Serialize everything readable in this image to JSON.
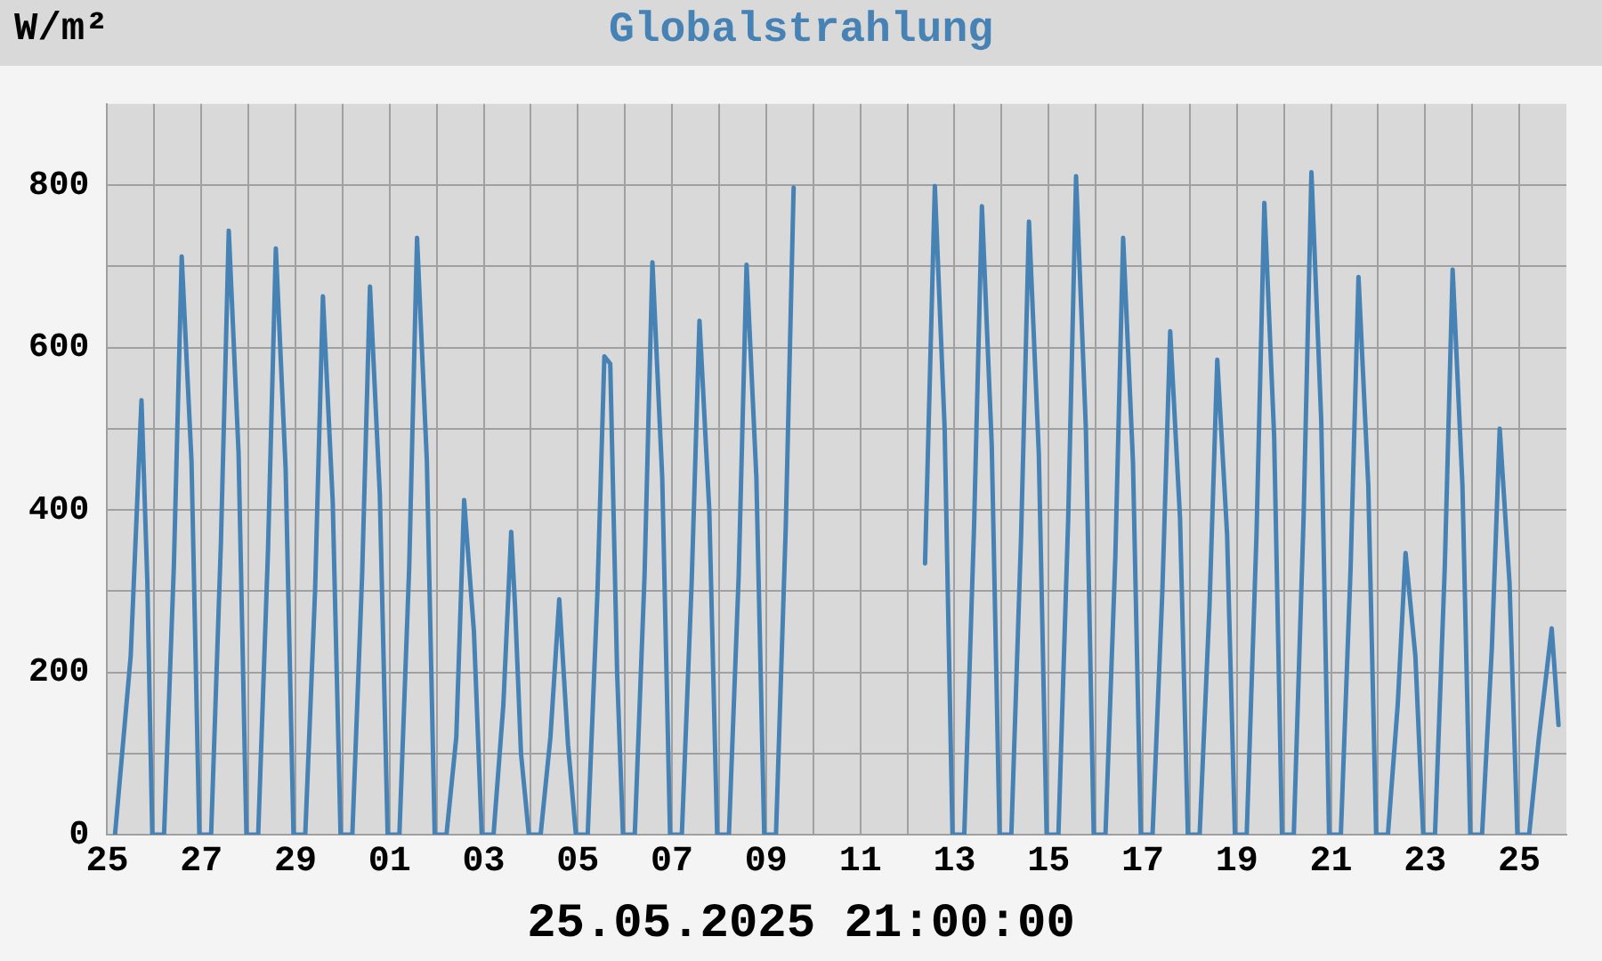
{
  "chart_data": {
    "type": "line",
    "title": "Globalstrahlung",
    "ylabel": "W/m²",
    "annotations": [
      "25.05.2025 21:00:00"
    ],
    "xlim": [
      "2025-04-25",
      "2025-05-26"
    ],
    "xticks": [
      {
        "value": "2025-04-25",
        "label": "25"
      },
      {
        "value": "2025-04-26",
        "label": null
      },
      {
        "value": "2025-04-27",
        "label": "27"
      },
      {
        "value": "2025-04-28",
        "label": null
      },
      {
        "value": "2025-04-29",
        "label": "29"
      },
      {
        "value": "2025-04-30",
        "label": null
      },
      {
        "value": "2025-05-01",
        "label": "01"
      },
      {
        "value": "2025-05-02",
        "label": null
      },
      {
        "value": "2025-05-03",
        "label": "03"
      },
      {
        "value": "2025-05-04",
        "label": null
      },
      {
        "value": "2025-05-05",
        "label": "05"
      },
      {
        "value": "2025-05-06",
        "label": null
      },
      {
        "value": "2025-05-07",
        "label": "07"
      },
      {
        "value": "2025-05-08",
        "label": null
      },
      {
        "value": "2025-05-09",
        "label": "09"
      },
      {
        "value": "2025-05-10",
        "label": null
      },
      {
        "value": "2025-05-11",
        "label": "11"
      },
      {
        "value": "2025-05-12",
        "label": null
      },
      {
        "value": "2025-05-13",
        "label": "13"
      },
      {
        "value": "2025-05-14",
        "label": null
      },
      {
        "value": "2025-05-15",
        "label": "15"
      },
      {
        "value": "2025-05-16",
        "label": null
      },
      {
        "value": "2025-05-17",
        "label": "17"
      },
      {
        "value": "2025-05-18",
        "label": null
      },
      {
        "value": "2025-05-19",
        "label": "19"
      },
      {
        "value": "2025-05-20",
        "label": null
      },
      {
        "value": "2025-05-21",
        "label": "21"
      },
      {
        "value": "2025-05-22",
        "label": null
      },
      {
        "value": "2025-05-23",
        "label": "23"
      },
      {
        "value": "2025-05-24",
        "label": null
      },
      {
        "value": "2025-05-25",
        "label": "25"
      }
    ],
    "ylim": [
      0,
      900
    ],
    "yticks": [
      0,
      {
        "value": 100,
        "label": null
      },
      200,
      {
        "value": 300,
        "label": null
      },
      400,
      {
        "value": 500,
        "label": null
      },
      600,
      {
        "value": 700,
        "label": null
      },
      800
    ],
    "grid": true,
    "legend": false,
    "marker": "none",
    "line_style": "solid",
    "series": [
      {
        "color": "#4682b4",
        "x": [
          "2025-04-25T04:00",
          "2025-04-25T12:00",
          "2025-04-25T17:30",
          "2025-04-25T20:30",
          "2025-04-25T23:00",
          "2025-04-26T05:00",
          "2025-04-26T10:00",
          "2025-04-26T14:00",
          "2025-04-26T19:00",
          "2025-04-26T23:00",
          "2025-04-27T05:00",
          "2025-04-27T10:00",
          "2025-04-27T14:00",
          "2025-04-27T19:00",
          "2025-04-27T23:00",
          "2025-04-28T05:00",
          "2025-04-28T10:00",
          "2025-04-28T14:00",
          "2025-04-28T19:00",
          "2025-04-28T23:00",
          "2025-04-29T05:00",
          "2025-04-29T10:00",
          "2025-04-29T14:00",
          "2025-04-29T19:00",
          "2025-04-29T23:00",
          "2025-04-30T05:00",
          "2025-04-30T10:00",
          "2025-04-30T14:00",
          "2025-04-30T19:00",
          "2025-04-30T23:00",
          "2025-05-01T05:00",
          "2025-05-01T10:00",
          "2025-05-01T14:00",
          "2025-05-01T19:00",
          "2025-05-01T23:00",
          "2025-05-02T05:00",
          "2025-05-02T10:00",
          "2025-05-02T14:00",
          "2025-05-02T19:00",
          "2025-05-02T23:00",
          "2025-05-03T05:00",
          "2025-05-03T10:00",
          "2025-05-03T14:00",
          "2025-05-03T16:00",
          "2025-05-03T19:00",
          "2025-05-03T23:00",
          "2025-05-04T05:00",
          "2025-05-04T10:00",
          "2025-05-04T14:30",
          "2025-05-04T19:00",
          "2025-05-04T23:00",
          "2025-05-05T05:00",
          "2025-05-05T10:00",
          "2025-05-05T13:30",
          "2025-05-05T16:30",
          "2025-05-05T20:00",
          "2025-05-05T23:00",
          "2025-05-06T05:00",
          "2025-05-06T10:00",
          "2025-05-06T14:00",
          "2025-05-06T19:00",
          "2025-05-06T23:00",
          "2025-05-07T05:00",
          "2025-05-07T10:00",
          "2025-05-07T14:00",
          "2025-05-07T19:00",
          "2025-05-07T23:00",
          "2025-05-08T05:00",
          "2025-05-08T10:00",
          "2025-05-08T14:00",
          "2025-05-08T19:00",
          "2025-05-08T23:00",
          "2025-05-09T05:00",
          "2025-05-09T10:00",
          "2025-05-09T14:00",
          "2025-05-10T12:00",
          "2025-05-12T09:00",
          "2025-05-12T14:00",
          "2025-05-12T19:00",
          "2025-05-12T23:00",
          "2025-05-13T05:00",
          "2025-05-13T10:00",
          "2025-05-13T14:00",
          "2025-05-13T19:00",
          "2025-05-13T23:00",
          "2025-05-14T05:00",
          "2025-05-14T10:00",
          "2025-05-14T14:00",
          "2025-05-14T19:00",
          "2025-05-14T23:00",
          "2025-05-15T05:00",
          "2025-05-15T10:00",
          "2025-05-15T14:00",
          "2025-05-15T19:00",
          "2025-05-15T23:00",
          "2025-05-16T05:00",
          "2025-05-16T10:00",
          "2025-05-16T14:00",
          "2025-05-16T19:00",
          "2025-05-16T23:00",
          "2025-05-17T05:00",
          "2025-05-17T10:00",
          "2025-05-17T14:00",
          "2025-05-17T19:00",
          "2025-05-17T23:00",
          "2025-05-18T05:00",
          "2025-05-18T10:00",
          "2025-05-18T14:00",
          "2025-05-18T19:00",
          "2025-05-18T23:00",
          "2025-05-19T05:00",
          "2025-05-19T10:00",
          "2025-05-19T14:00",
          "2025-05-19T19:00",
          "2025-05-19T23:00",
          "2025-05-20T05:00",
          "2025-05-20T10:00",
          "2025-05-20T14:00",
          "2025-05-20T19:00",
          "2025-05-20T23:00",
          "2025-05-21T05:00",
          "2025-05-21T10:00",
          "2025-05-21T14:00",
          "2025-05-21T19:00",
          "2025-05-21T23:00",
          "2025-05-22T05:00",
          "2025-05-22T10:00",
          "2025-05-22T14:00",
          "2025-05-22T19:00",
          "2025-05-22T23:00",
          "2025-05-23T05:00",
          "2025-05-23T10:00",
          "2025-05-23T14:00",
          "2025-05-23T19:00",
          "2025-05-23T23:00",
          "2025-05-24T05:00",
          "2025-05-24T10:00",
          "2025-05-24T14:00",
          "2025-05-24T19:00",
          "2025-05-24T23:00",
          "2025-05-25T05:00",
          "2025-05-25T10:00",
          "2025-05-25T16:30",
          "2025-05-25T20:00"
        ],
        "values": [
          0,
          220,
          535,
          310,
          0,
          0,
          330,
          712,
          460,
          0,
          0,
          360,
          744,
          470,
          0,
          0,
          350,
          722,
          450,
          0,
          0,
          300,
          663,
          410,
          0,
          0,
          320,
          675,
          420,
          0,
          0,
          330,
          735,
          460,
          0,
          0,
          120,
          412,
          250,
          0,
          0,
          160,
          373,
          280,
          100,
          0,
          0,
          120,
          290,
          110,
          0,
          0,
          300,
          589,
          580,
          200,
          0,
          0,
          320,
          705,
          440,
          0,
          0,
          310,
          633,
          400,
          0,
          0,
          320,
          702,
          440,
          0,
          0,
          380,
          797,
          null,
          334,
          799,
          500,
          0,
          0,
          380,
          774,
          480,
          0,
          0,
          370,
          755,
          470,
          0,
          0,
          390,
          811,
          500,
          0,
          0,
          340,
          735,
          460,
          0,
          0,
          300,
          620,
          390,
          0,
          0,
          280,
          585,
          370,
          0,
          0,
          370,
          778,
          490,
          0,
          0,
          390,
          816,
          510,
          0,
          0,
          330,
          687,
          430,
          0,
          0,
          160,
          347,
          220,
          0,
          0,
          330,
          696,
          430,
          0,
          0,
          230,
          500,
          310,
          0,
          0,
          120,
          254,
          135
        ]
      }
    ]
  }
}
